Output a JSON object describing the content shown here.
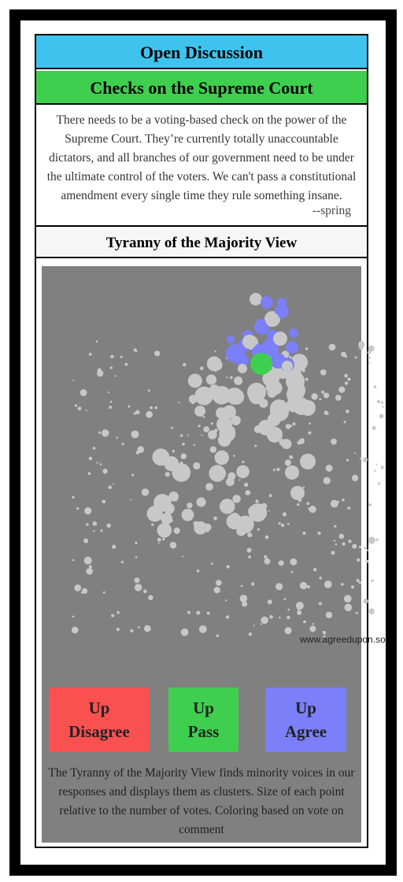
{
  "header": {
    "section_title": "Open Discussion",
    "topic_title": "Checks on the Supreme Court"
  },
  "comment": {
    "text": "There needs to be a voting-based check on the power of the Supreme Court. They’re currently totally unaccountable dictators, and all branches of our government need to be under the ultimate control of the voters. We can't pass a constitutional amendment every single time they rule something insane.",
    "author": "--spring"
  },
  "view": {
    "title": "Tyranny of the Majority View",
    "watermark": "www.agreedupon.so",
    "description": "The Tyranny of the Majority View finds minority voices in our responses and displays them as clusters. Size of each point relative to the number of votes. Coloring based on vote on comment"
  },
  "buttons": {
    "disagree": {
      "line1": "Up",
      "line2": "Disagree"
    },
    "pass": {
      "line1": "Up",
      "line2": "Pass"
    },
    "agree": {
      "line1": "Up",
      "line2": "Agree"
    }
  },
  "colors": {
    "header_blue": "#3ec3ef",
    "topic_green": "#3fcf4f",
    "disagree_red": "#fb5050",
    "agree_blue": "#7b7ff8",
    "point_gray": "#c8c8c8",
    "plot_bg": "#808080"
  }
}
